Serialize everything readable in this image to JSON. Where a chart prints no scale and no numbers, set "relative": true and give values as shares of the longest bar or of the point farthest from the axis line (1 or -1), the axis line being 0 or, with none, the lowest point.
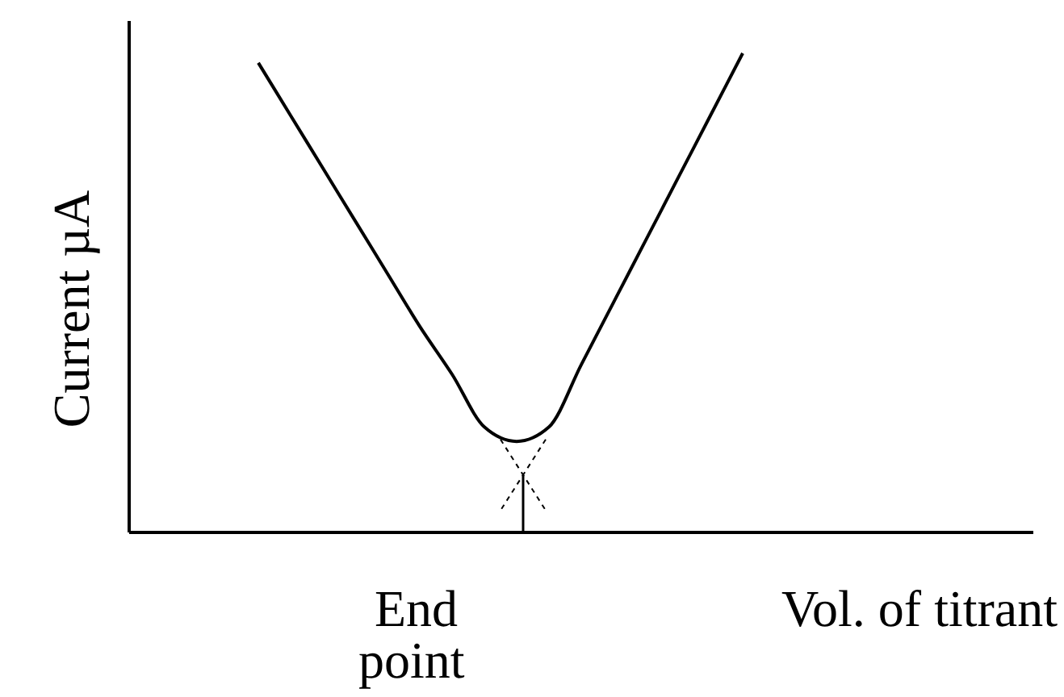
{
  "chart_data": {
    "type": "line",
    "relative": true,
    "xlabel": "Vol. of titrant",
    "ylabel": "Current µA",
    "annotations": [
      "End point"
    ],
    "marker": "none",
    "line_style": "solid",
    "categories": [
      null,
      null,
      null,
      null,
      null,
      null,
      null,
      null,
      null,
      null,
      null,
      null,
      null,
      null,
      null,
      null,
      null,
      null,
      null,
      null,
      null,
      null,
      null,
      null,
      null,
      null,
      null,
      null,
      null
    ],
    "series": [
      {
        "color": "#000000",
        "values": [
          null,
          null,
          null,
          null,
          0.98,
          0.87,
          0.76,
          0.65,
          0.54,
          0.43,
          0.33,
          0.22,
          0.19,
          0.22,
          0.35,
          0.48,
          0.61,
          0.74,
          0.87,
          1.0,
          null,
          null,
          null,
          null,
          null,
          null,
          null,
          null,
          null
        ]
      }
    ]
  }
}
